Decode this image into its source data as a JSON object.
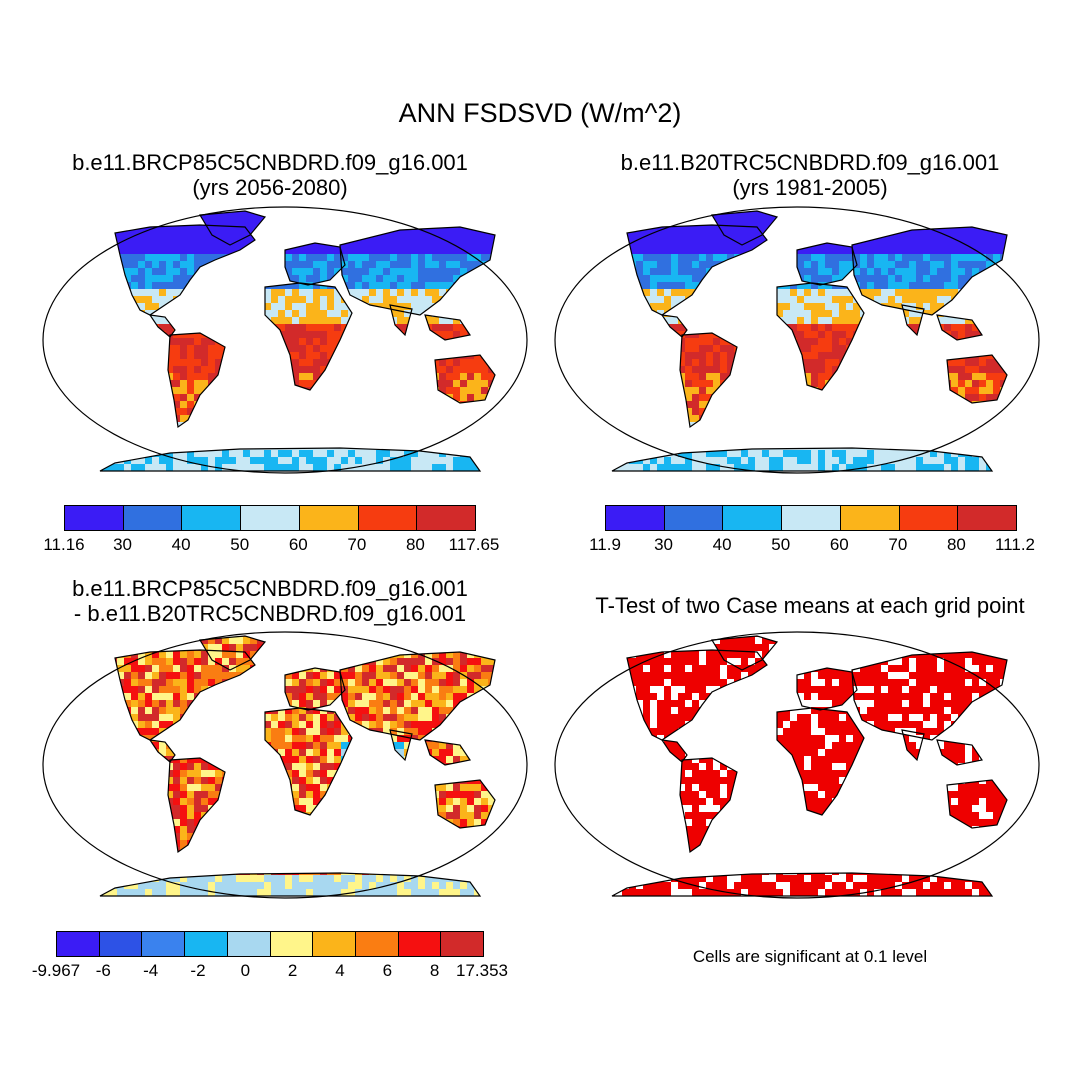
{
  "figure": {
    "title": "ANN FSDSVD (W/m^2)"
  },
  "panels": [
    {
      "id": "case",
      "title_line1": "b.e11.BRCP85C5CNBDRD.f09_g16.001",
      "title_line2": "(yrs 2056-2080)",
      "colorbar": {
        "labels": [
          "11.16",
          "30",
          "40",
          "50",
          "60",
          "70",
          "80",
          "117.65"
        ],
        "colors": [
          "#3b1cf5",
          "#3070e0",
          "#18b6f2",
          "#c8e8f5",
          "#fbb41a",
          "#f63c10",
          "#d22a2a"
        ]
      },
      "palette_fill": [
        "#3b1cf5",
        "#3070e0",
        "#18b6f2",
        "#c8e8f5",
        "#fbb41a",
        "#f63c10",
        "#d22a2a"
      ]
    },
    {
      "id": "control",
      "title_line1": "b.e11.B20TRC5CNBDRD.f09_g16.001",
      "title_line2": "(yrs 1981-2005)",
      "colorbar": {
        "labels": [
          "11.9",
          "30",
          "40",
          "50",
          "60",
          "70",
          "80",
          "111.2"
        ],
        "colors": [
          "#3b1cf5",
          "#3070e0",
          "#18b6f2",
          "#c8e8f5",
          "#fbb41a",
          "#f63c10",
          "#d22a2a"
        ]
      }
    },
    {
      "id": "difference",
      "title_line1": "b.e11.BRCP85C5CNBDRD.f09_g16.001",
      "title_line2": "- b.e11.B20TRC5CNBDRD.f09_g16.001",
      "colorbar": {
        "labels": [
          "-9.967",
          "-6",
          "-4",
          "-2",
          "0",
          "2",
          "4",
          "6",
          "8",
          "17.353"
        ],
        "colors": [
          "#3b1cf5",
          "#2d52e6",
          "#3a82ee",
          "#18b6f2",
          "#a8d8f0",
          "#fff58a",
          "#fbb41a",
          "#fa7d12",
          "#f51010",
          "#d22a2a"
        ]
      }
    },
    {
      "id": "ttest",
      "title_line1": "T-Test of two Case means at each grid point",
      "significance_color": "#ee0000",
      "note": "Cells are significant at 0.1 level"
    }
  ]
}
